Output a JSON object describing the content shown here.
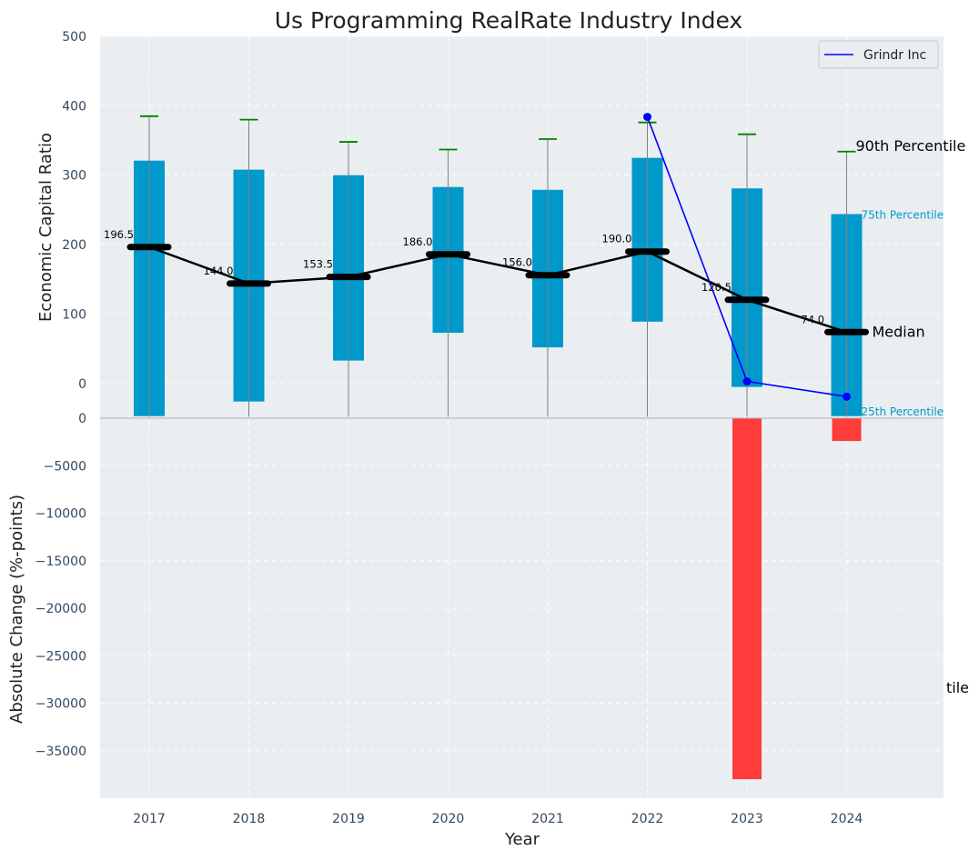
{
  "chart_data": {
    "type": "bar",
    "title": "Us Programming RealRate Industry Index",
    "xlabel": "Year",
    "categories": [
      "2017",
      "2018",
      "2019",
      "2020",
      "2021",
      "2022",
      "2023",
      "2024"
    ],
    "top_panel": {
      "ylabel": "Economic Capital Ratio",
      "ylim": [
        -50,
        500
      ],
      "yticks": [
        0,
        100,
        200,
        300,
        400,
        500
      ],
      "extra_tick_label": "0",
      "percentile_10": [
        -48,
        -48,
        -48,
        -48,
        -48,
        -48,
        -48,
        -48
      ],
      "percentile_25": [
        -47,
        -26,
        33,
        73,
        52,
        89,
        -5,
        -47
      ],
      "median": [
        196.5,
        144.0,
        153.5,
        186.0,
        156.0,
        190.0,
        120.5,
        74.0
      ],
      "percentile_75": [
        321,
        308,
        300,
        283,
        279,
        325,
        281,
        244
      ],
      "percentile_90": [
        385,
        380,
        348,
        337,
        352,
        376,
        359,
        334
      ],
      "median_labels": [
        "196.5",
        "144.0",
        "153.5",
        "186.0",
        "156.0",
        "190.0",
        "120.5",
        "74.0"
      ],
      "company_series": {
        "name": "Grindr Inc",
        "x": [
          "2022",
          "2023",
          "2024"
        ],
        "values": [
          384,
          3,
          -19
        ],
        "color": "#0000ff"
      },
      "annotations": {
        "p90": "90th Percentile",
        "p75": "75th Percentile",
        "median": "Median",
        "p25": "25th Percentile"
      },
      "legend_position": "top-right"
    },
    "bottom_panel": {
      "ylabel": "Absolute Change (%-points)",
      "ylim": [
        -40000,
        0
      ],
      "yticks": [
        0,
        -5000,
        -10000,
        -15000,
        -20000,
        -25000,
        -30000,
        -35000
      ],
      "ytick_labels": [
        "0",
        "−5000",
        "−10000",
        "−15000",
        "−20000",
        "−25000",
        "−30000",
        "−35000"
      ],
      "bars": [
        {
          "x": "2023",
          "value": -38000
        },
        {
          "x": "2024",
          "value": -2400
        }
      ],
      "clipped_annotation": "tile"
    },
    "colors": {
      "box": "#0099cc",
      "median": "#000000",
      "whisker_cap": "#008000",
      "whisker": "#808080",
      "company": "#0000ff",
      "negative_bar": "#ff3b3b",
      "background": "#eaeef0"
    }
  }
}
